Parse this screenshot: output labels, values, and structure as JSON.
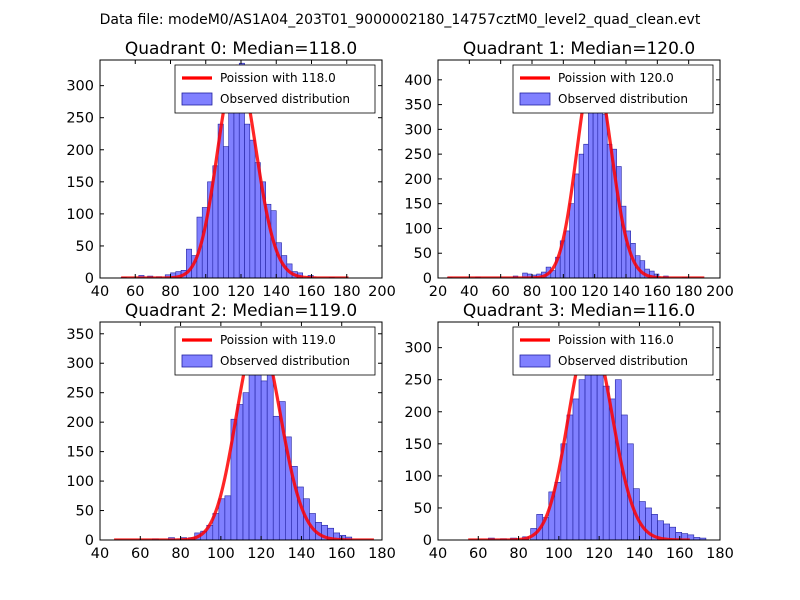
{
  "suptitle": "Data file: modeM0/AS1A04_203T01_9000002180_14757cztM0_level2_quad_clean.evt",
  "colors": {
    "bar_fill": "#8080ff",
    "bar_edge": "#2020a0",
    "fit_line": "#ff0000",
    "background": "#ffffff",
    "axes": "#000000"
  },
  "chart_data": [
    {
      "type": "bar",
      "title": "Quadrant 0: Median=118.0",
      "median": 118.0,
      "xlim": [
        40,
        200
      ],
      "ylim": [
        0,
        340
      ],
      "xticks": [
        40,
        60,
        80,
        100,
        120,
        140,
        160,
        180,
        200
      ],
      "yticks": [
        0,
        50,
        100,
        150,
        200,
        250,
        300
      ],
      "bin_width": 3,
      "bins": [
        [
          52,
          1
        ],
        [
          62,
          4
        ],
        [
          67,
          3
        ],
        [
          72,
          2
        ],
        [
          77,
          5
        ],
        [
          80,
          8
        ],
        [
          83,
          10
        ],
        [
          86,
          12
        ],
        [
          89,
          45
        ],
        [
          92,
          35
        ],
        [
          95,
          95
        ],
        [
          98,
          110
        ],
        [
          101,
          150
        ],
        [
          104,
          175
        ],
        [
          107,
          240
        ],
        [
          110,
          205
        ],
        [
          113,
          300
        ],
        [
          116,
          290
        ],
        [
          119,
          335
        ],
        [
          122,
          240
        ],
        [
          125,
          215
        ],
        [
          128,
          180
        ],
        [
          131,
          150
        ],
        [
          134,
          115
        ],
        [
          137,
          105
        ],
        [
          140,
          55
        ],
        [
          143,
          35
        ],
        [
          146,
          22
        ],
        [
          149,
          10
        ],
        [
          152,
          8
        ],
        [
          158,
          4
        ],
        [
          170,
          1
        ]
      ],
      "legend": [
        "Poission with 118.0",
        "Observed distribution"
      ],
      "fit": {
        "label": "Poission with 118.0",
        "mean": 118.0,
        "peak": 330,
        "xrange": [
          52,
          181
        ]
      }
    },
    {
      "type": "bar",
      "title": "Quadrant 1: Median=120.0",
      "median": 120.0,
      "xlim": [
        20,
        200
      ],
      "ylim": [
        0,
        440
      ],
      "xticks": [
        20,
        40,
        60,
        80,
        100,
        120,
        140,
        160,
        180,
        200
      ],
      "yticks": [
        0,
        50,
        100,
        150,
        200,
        250,
        300,
        350,
        400
      ],
      "bin_width": 3,
      "bins": [
        [
          26,
          1
        ],
        [
          44,
          2
        ],
        [
          68,
          4
        ],
        [
          74,
          10
        ],
        [
          77,
          8
        ],
        [
          80,
          6
        ],
        [
          83,
          8
        ],
        [
          86,
          12
        ],
        [
          89,
          22
        ],
        [
          92,
          15
        ],
        [
          95,
          42
        ],
        [
          98,
          75
        ],
        [
          101,
          95
        ],
        [
          104,
          150
        ],
        [
          107,
          210
        ],
        [
          110,
          250
        ],
        [
          113,
          270
        ],
        [
          116,
          340
        ],
        [
          119,
          400
        ],
        [
          122,
          375
        ],
        [
          125,
          330
        ],
        [
          128,
          270
        ],
        [
          131,
          260
        ],
        [
          134,
          225
        ],
        [
          137,
          145
        ],
        [
          140,
          95
        ],
        [
          143,
          70
        ],
        [
          146,
          45
        ],
        [
          149,
          35
        ],
        [
          152,
          18
        ],
        [
          155,
          14
        ],
        [
          158,
          8
        ],
        [
          164,
          4
        ],
        [
          176,
          1
        ]
      ],
      "legend": [
        "Poission with 120.0",
        "Observed distribution"
      ],
      "fit": {
        "label": "Poission with 120.0",
        "mean": 120.0,
        "peak": 425,
        "xrange": [
          26,
          190
        ]
      }
    },
    {
      "type": "bar",
      "title": "Quadrant 2: Median=119.0",
      "median": 119.0,
      "xlim": [
        40,
        180
      ],
      "ylim": [
        0,
        370
      ],
      "xticks": [
        40,
        60,
        80,
        100,
        120,
        140,
        160,
        180
      ],
      "yticks": [
        0,
        50,
        100,
        150,
        200,
        250,
        300,
        350
      ],
      "bin_width": 3,
      "bins": [
        [
          66,
          2
        ],
        [
          74,
          4
        ],
        [
          80,
          4
        ],
        [
          84,
          4
        ],
        [
          87,
          12
        ],
        [
          90,
          15
        ],
        [
          93,
          25
        ],
        [
          96,
          45
        ],
        [
          99,
          70
        ],
        [
          102,
          75
        ],
        [
          105,
          205
        ],
        [
          108,
          230
        ],
        [
          111,
          250
        ],
        [
          114,
          325
        ],
        [
          117,
          355
        ],
        [
          120,
          270
        ],
        [
          123,
          310
        ],
        [
          126,
          210
        ],
        [
          129,
          235
        ],
        [
          132,
          175
        ],
        [
          135,
          125
        ],
        [
          138,
          90
        ],
        [
          141,
          70
        ],
        [
          144,
          45
        ],
        [
          147,
          30
        ],
        [
          150,
          25
        ],
        [
          153,
          20
        ],
        [
          156,
          12
        ],
        [
          159,
          8
        ],
        [
          162,
          5
        ]
      ],
      "legend": [
        "Poission with 119.0",
        "Observed distribution"
      ],
      "fit": {
        "label": "Poission with 119.0",
        "mean": 119.0,
        "peak": 350,
        "xrange": [
          47,
          176
        ]
      }
    },
    {
      "type": "bar",
      "title": "Quadrant 3: Median=116.0",
      "median": 116.0,
      "xlim": [
        40,
        180
      ],
      "ylim": [
        0,
        340
      ],
      "xticks": [
        40,
        60,
        80,
        100,
        120,
        140,
        160,
        180
      ],
      "yticks": [
        0,
        50,
        100,
        150,
        200,
        250,
        300
      ],
      "bin_width": 3,
      "bins": [
        [
          65,
          3
        ],
        [
          71,
          2
        ],
        [
          76,
          3
        ],
        [
          82,
          5
        ],
        [
          86,
          18
        ],
        [
          89,
          40
        ],
        [
          92,
          35
        ],
        [
          95,
          75
        ],
        [
          98,
          90
        ],
        [
          101,
          150
        ],
        [
          104,
          195
        ],
        [
          107,
          220
        ],
        [
          110,
          250
        ],
        [
          113,
          280
        ],
        [
          116,
          300
        ],
        [
          119,
          275
        ],
        [
          122,
          240
        ],
        [
          125,
          220
        ],
        [
          128,
          250
        ],
        [
          131,
          195
        ],
        [
          134,
          150
        ],
        [
          137,
          80
        ],
        [
          140,
          60
        ],
        [
          143,
          50
        ],
        [
          146,
          40
        ],
        [
          149,
          30
        ],
        [
          152,
          25
        ],
        [
          155,
          20
        ],
        [
          158,
          12
        ],
        [
          161,
          10
        ],
        [
          164,
          8
        ],
        [
          167,
          4
        ],
        [
          170,
          3
        ]
      ],
      "legend": [
        "Poission with 116.0",
        "Observed distribution"
      ],
      "fit": {
        "label": "Poission with 116.0",
        "mean": 116.0,
        "peak": 322,
        "xrange": [
          55,
          165
        ]
      }
    }
  ]
}
